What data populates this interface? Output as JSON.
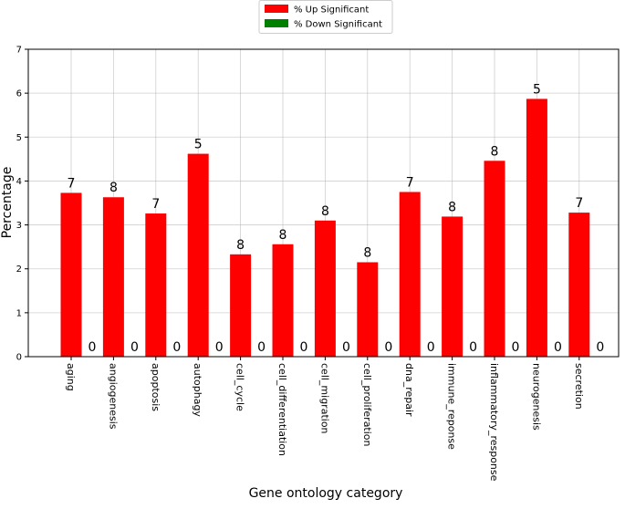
{
  "chart_data": {
    "type": "bar",
    "x_label": "Gene ontology category",
    "y_label": "Percentage",
    "categories": [
      "aging",
      "angiogenesis",
      "apoptosis",
      "autophagy",
      "cell_cycle",
      "cell_differentiation",
      "cell_migration",
      "cell_proliferation",
      "dna_repair",
      "immune_reponse",
      "inflammatory_response",
      "neurogenesis",
      "secretion"
    ],
    "series": [
      {
        "name": "% Up Significant",
        "color": "#ff0000",
        "values": [
          3.73,
          3.63,
          3.26,
          4.62,
          2.33,
          2.56,
          3.1,
          2.15,
          3.75,
          3.19,
          4.46,
          5.87,
          3.28
        ],
        "bar_labels": [
          "7",
          "8",
          "7",
          "5",
          "8",
          "8",
          "8",
          "8",
          "7",
          "8",
          "8",
          "5",
          "7"
        ]
      },
      {
        "name": "% Down Significant",
        "color": "#008000",
        "values": [
          0,
          0,
          0,
          0,
          0,
          0,
          0,
          0,
          0,
          0,
          0,
          0,
          0
        ],
        "bar_labels": [
          "0",
          "0",
          "0",
          "0",
          "0",
          "0",
          "0",
          "0",
          "0",
          "0",
          "0",
          "0",
          "0"
        ]
      }
    ],
    "ylim": [
      0,
      7
    ],
    "yticks": [
      0,
      1,
      2,
      3,
      4,
      5,
      6,
      7
    ],
    "grid": true,
    "legend": "top"
  }
}
